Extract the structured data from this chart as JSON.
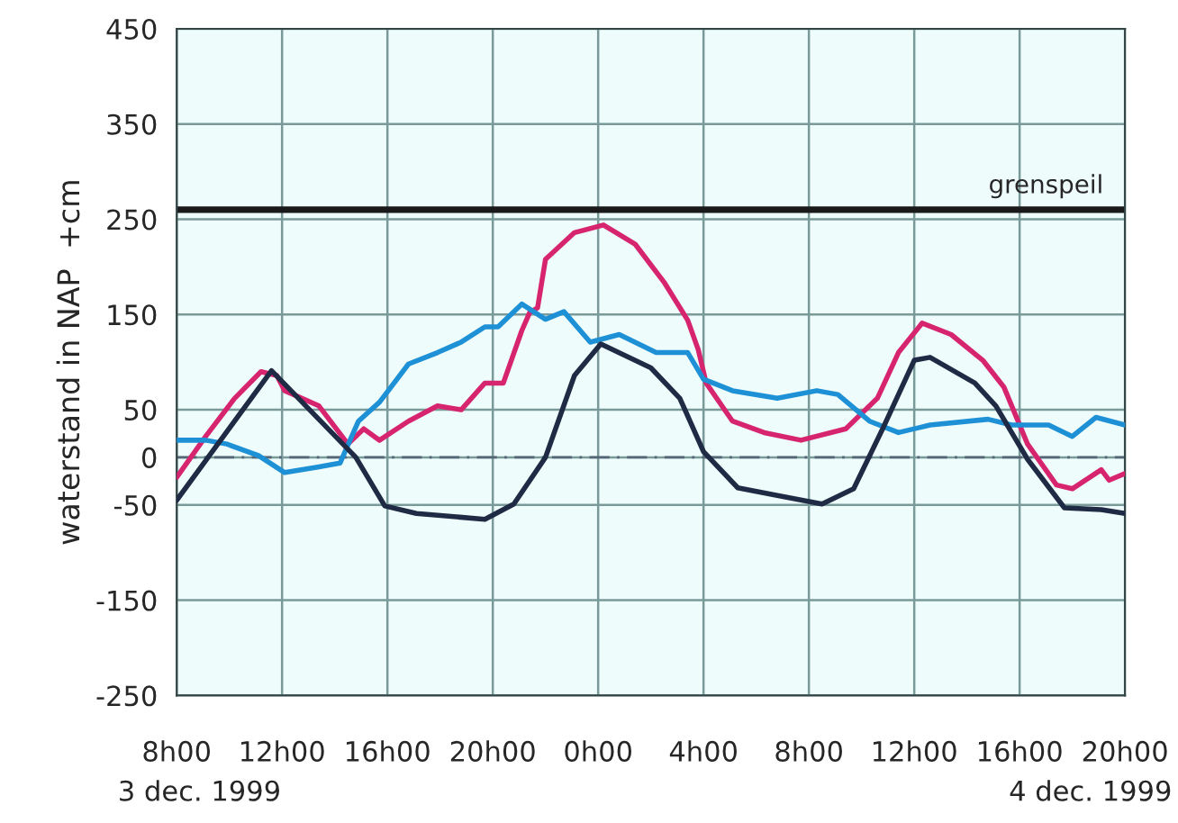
{
  "chart_data": {
    "type": "line",
    "ylabel": "waterstand in NAP  +cm",
    "xlim": [
      "1999-12-03T08:00",
      "1999-12-04T20:00"
    ],
    "ylim": [
      -250,
      450
    ],
    "xticks": [
      {
        "value": "1999-12-03T08:00",
        "label": "8h00"
      },
      {
        "value": "1999-12-03T12:00",
        "label": "12h00"
      },
      {
        "value": "1999-12-03T16:00",
        "label": "16h00"
      },
      {
        "value": "1999-12-03T20:00",
        "label": "20h00"
      },
      {
        "value": "1999-12-04T00:00",
        "label": "0h00"
      },
      {
        "value": "1999-12-04T04:00",
        "label": "4h00"
      },
      {
        "value": "1999-12-04T08:00",
        "label": "8h00"
      },
      {
        "value": "1999-12-04T12:00",
        "label": "12h00"
      },
      {
        "value": "1999-12-04T16:00",
        "label": "16h00"
      },
      {
        "value": "1999-12-04T20:00",
        "label": "20h00"
      }
    ],
    "yticks": [
      -250,
      -150,
      -50,
      0,
      50,
      150,
      250,
      350,
      450
    ],
    "grid": true,
    "marker": "none",
    "line_style": "solid",
    "ref_lines": [
      {
        "axis": "y",
        "value": 260,
        "label": "grenspeil",
        "color": "#1a1a1a",
        "line_style": "solid"
      },
      {
        "axis": "y",
        "value": 0,
        "label": null,
        "color": "#556677",
        "line_style": "dashed"
      }
    ],
    "annotations": [
      "3 dec. 1999",
      "4 dec. 1999"
    ],
    "series": [
      {
        "color": "#d6246e",
        "x": [
          "1999-12-03T08:00",
          "1999-12-03T09:06",
          "1999-12-03T10:12",
          "1999-12-03T11:12",
          "1999-12-03T11:48",
          "1999-12-03T12:06",
          "1999-12-03T13:24",
          "1999-12-03T14:30",
          "1999-12-03T15:06",
          "1999-12-03T15:42",
          "1999-12-03T16:48",
          "1999-12-03T17:54",
          "1999-12-03T18:48",
          "1999-12-03T19:42",
          "1999-12-03T20:24",
          "1999-12-03T21:06",
          "1999-12-03T21:24",
          "1999-12-03T21:42",
          "1999-12-03T22:00",
          "1999-12-03T23:06",
          "1999-12-04T00:12",
          "1999-12-04T01:24",
          "1999-12-04T02:30",
          "1999-12-04T03:24",
          "1999-12-04T03:48",
          "1999-12-04T04:06",
          "1999-12-04T05:06",
          "1999-12-04T06:18",
          "1999-12-04T07:42",
          "1999-12-04T09:24",
          "1999-12-04T10:36",
          "1999-12-04T11:24",
          "1999-12-04T12:18",
          "1999-12-04T13:24",
          "1999-12-04T14:36",
          "1999-12-04T15:24",
          "1999-12-04T16:18",
          "1999-12-04T17:24",
          "1999-12-04T18:00",
          "1999-12-04T19:06",
          "1999-12-04T19:24",
          "1999-12-04T20:00"
        ],
        "values": [
          -21,
          22,
          62,
          90,
          86,
          70,
          54,
          14,
          30,
          18,
          38,
          54,
          50,
          78,
          78,
          133,
          152,
          157,
          208,
          236,
          244,
          224,
          184,
          144,
          113,
          78,
          38,
          26,
          18,
          30,
          62,
          110,
          141,
          129,
          102,
          74,
          14,
          -29,
          -33,
          -13,
          -24,
          -17
        ]
      },
      {
        "color": "#1e90d6",
        "x": [
          "1999-12-03T08:00",
          "1999-12-03T09:06",
          "1999-12-03T09:54",
          "1999-12-03T11:06",
          "1999-12-03T12:06",
          "1999-12-03T13:24",
          "1999-12-03T14:12",
          "1999-12-03T14:54",
          "1999-12-03T15:42",
          "1999-12-03T16:48",
          "1999-12-03T17:54",
          "1999-12-03T18:48",
          "1999-12-03T19:42",
          "1999-12-03T20:12",
          "1999-12-03T21:06",
          "1999-12-03T22:00",
          "1999-12-03T22:42",
          "1999-12-03T23:42",
          "1999-12-04T00:48",
          "1999-12-04T02:12",
          "1999-12-04T03:24",
          "1999-12-04T04:00",
          "1999-12-04T05:06",
          "1999-12-04T06:48",
          "1999-12-04T08:18",
          "1999-12-04T09:06",
          "1999-12-04T10:18",
          "1999-12-04T11:24",
          "1999-12-04T12:36",
          "1999-12-04T14:48",
          "1999-12-04T15:42",
          "1999-12-04T17:06",
          "1999-12-04T18:00",
          "1999-12-04T18:54",
          "1999-12-04T20:00"
        ],
        "values": [
          18,
          18,
          14,
          2,
          -16,
          -10,
          -6,
          38,
          58,
          98,
          110,
          121,
          137,
          137,
          161,
          145,
          153,
          121,
          129,
          110,
          110,
          82,
          70,
          62,
          70,
          66,
          38,
          26,
          34,
          40,
          34,
          34,
          22,
          42,
          34
        ]
      },
      {
        "color": "#1f2a44",
        "x": [
          "1999-12-03T08:00",
          "1999-12-03T11:36",
          "1999-12-03T14:48",
          "1999-12-03T15:54",
          "1999-12-03T17:06",
          "1999-12-03T19:42",
          "1999-12-03T20:48",
          "1999-12-03T22:00",
          "1999-12-03T23:06",
          "1999-12-04T00:06",
          "1999-12-04T02:00",
          "1999-12-04T03:06",
          "1999-12-04T04:00",
          "1999-12-04T05:18",
          "1999-12-04T06:48",
          "1999-12-04T08:30",
          "1999-12-04T09:42",
          "1999-12-04T10:48",
          "1999-12-04T12:00",
          "1999-12-04T12:36",
          "1999-12-04T14:18",
          "1999-12-04T15:06",
          "1999-12-04T16:18",
          "1999-12-04T17:42",
          "1999-12-04T19:06",
          "1999-12-04T20:00"
        ],
        "values": [
          -45,
          91,
          0,
          -51,
          -59,
          -65,
          -49,
          0,
          86,
          119,
          94,
          62,
          6,
          -32,
          -40,
          -49,
          -33,
          30,
          102,
          105,
          78,
          54,
          -2,
          -53,
          -55,
          -59
        ]
      }
    ]
  }
}
